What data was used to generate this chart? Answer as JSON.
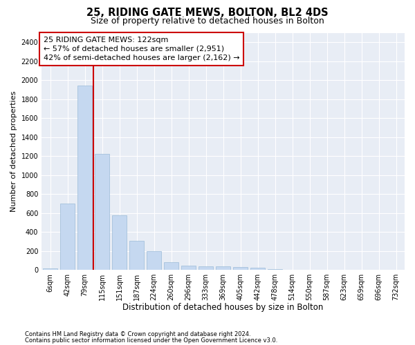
{
  "title": "25, RIDING GATE MEWS, BOLTON, BL2 4DS",
  "subtitle": "Size of property relative to detached houses in Bolton",
  "xlabel": "Distribution of detached houses by size in Bolton",
  "ylabel": "Number of detached properties",
  "categories": [
    "6sqm",
    "42sqm",
    "79sqm",
    "115sqm",
    "151sqm",
    "187sqm",
    "224sqm",
    "260sqm",
    "296sqm",
    "333sqm",
    "369sqm",
    "405sqm",
    "442sqm",
    "478sqm",
    "514sqm",
    "550sqm",
    "587sqm",
    "623sqm",
    "659sqm",
    "696sqm",
    "732sqm"
  ],
  "values": [
    15,
    700,
    1940,
    1225,
    575,
    305,
    200,
    80,
    48,
    38,
    35,
    30,
    25,
    5,
    3,
    2,
    2,
    1,
    1,
    1,
    1
  ],
  "bar_color": "#c5d8f0",
  "bar_edge_color": "#9bbbd8",
  "red_line_x": 2.5,
  "annotation_line1": "25 RIDING GATE MEWS: 122sqm",
  "annotation_line2": "← 57% of detached houses are smaller (2,951)",
  "annotation_line3": "42% of semi-detached houses are larger (2,162) →",
  "annotation_box_facecolor": "#ffffff",
  "annotation_box_edgecolor": "#cc0000",
  "red_line_color": "#cc0000",
  "ylim": [
    0,
    2500
  ],
  "yticks": [
    0,
    200,
    400,
    600,
    800,
    1000,
    1200,
    1400,
    1600,
    1800,
    2000,
    2200,
    2400
  ],
  "footnote1": "Contains HM Land Registry data © Crown copyright and database right 2024.",
  "footnote2": "Contains public sector information licensed under the Open Government Licence v3.0.",
  "grid_color": "#ffffff",
  "plot_bg_color": "#e8edf5",
  "title_fontsize": 10.5,
  "subtitle_fontsize": 9,
  "tick_fontsize": 7,
  "ylabel_fontsize": 8,
  "xlabel_fontsize": 8.5,
  "footnote_fontsize": 6,
  "annotation_fontsize": 8
}
